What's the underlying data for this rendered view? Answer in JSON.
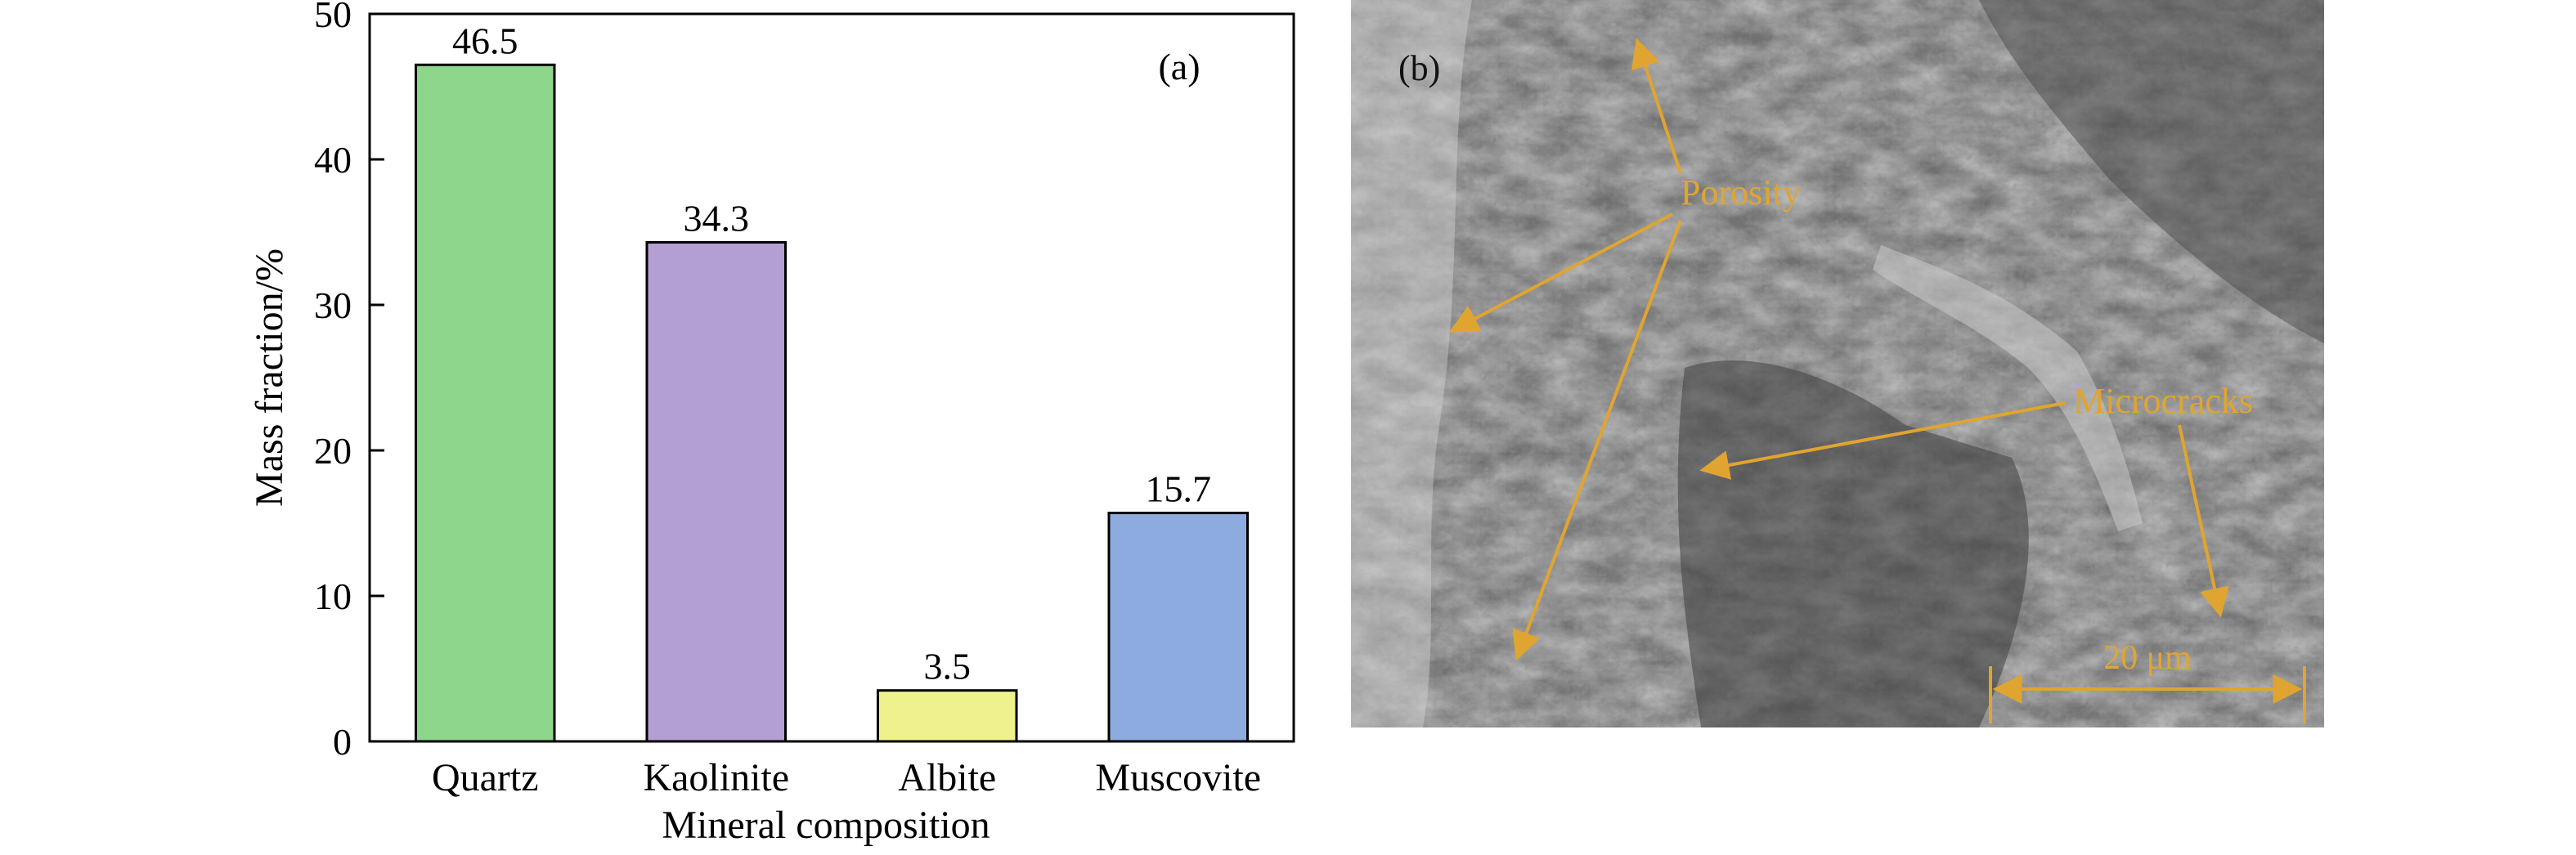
{
  "chart_data": {
    "type": "bar",
    "panel_label": "(a)",
    "categories": [
      "Quartz",
      "Kaolinite",
      "Albite",
      "Muscovite"
    ],
    "values": [
      46.5,
      34.3,
      3.5,
      15.7
    ],
    "value_labels": [
      "46.5",
      "34.3",
      "3.5",
      "15.7"
    ],
    "colors": [
      "#8ed68c",
      "#b49fd3",
      "#eff28c",
      "#8eabe0"
    ],
    "xlabel": "Mineral composition",
    "ylabel": "Mass fraction/%",
    "ylim": [
      0,
      50
    ],
    "yticks": [
      0,
      10,
      20,
      30,
      40,
      50
    ],
    "grid": false,
    "legend": "none"
  },
  "micrograph": {
    "panel_label": "(b)",
    "annotations": [
      "Porosity",
      "Microcracks"
    ],
    "scale_bar": "20 μm",
    "annotation_color": "#e0a530"
  }
}
